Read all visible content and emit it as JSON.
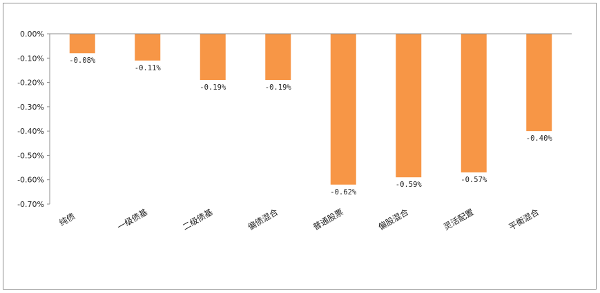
{
  "chart_data": {
    "type": "bar",
    "categories": [
      "纯债",
      "一级债基",
      "二级债基",
      "偏债混合",
      "普通股票",
      "偏股混合",
      "灵活配置",
      "平衡混合"
    ],
    "values": [
      -0.08,
      -0.11,
      -0.19,
      -0.19,
      -0.62,
      -0.59,
      -0.57,
      -0.4
    ],
    "data_labels": [
      "-0.08%",
      "-0.11%",
      "-0.19%",
      "-0.19%",
      "-0.62%",
      "-0.59%",
      "-0.57%",
      "-0.40%"
    ],
    "y_ticks": [
      "0.00%",
      "-0.10%",
      "-0.20%",
      "-0.30%",
      "-0.40%",
      "-0.50%",
      "-0.60%",
      "-0.70%"
    ],
    "y_tick_values": [
      0,
      -0.1,
      -0.2,
      -0.3,
      -0.4,
      -0.5,
      -0.6,
      -0.7
    ],
    "ylim": [
      -0.7,
      0
    ],
    "grid": false,
    "legend": "none",
    "title": "",
    "xlabel": "",
    "ylabel": "",
    "bar_color": "#f79646",
    "axis_color": "#8c8c8c"
  }
}
